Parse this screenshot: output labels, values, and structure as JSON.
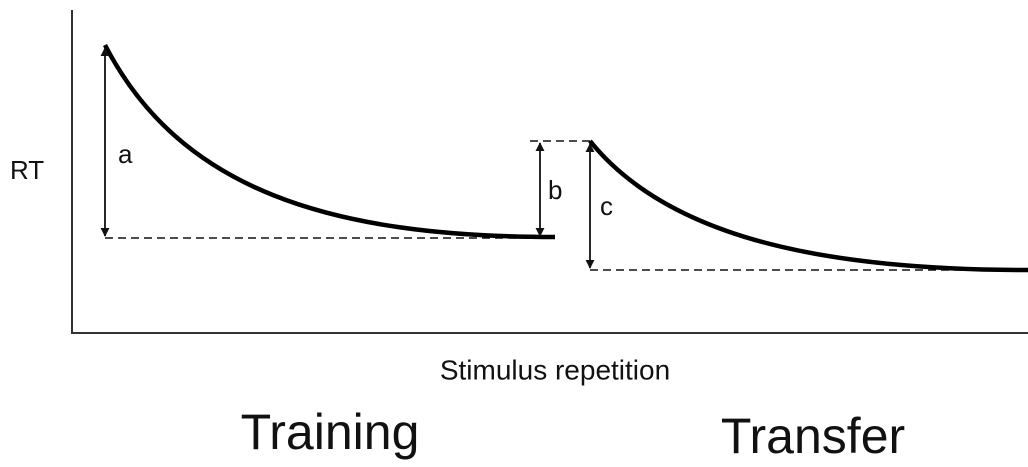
{
  "y_axis_label": "RT",
  "x_axis_label": "Stimulus repetition",
  "phases": [
    "Training",
    "Transfer"
  ],
  "markers": [
    "a",
    "b",
    "c"
  ]
}
